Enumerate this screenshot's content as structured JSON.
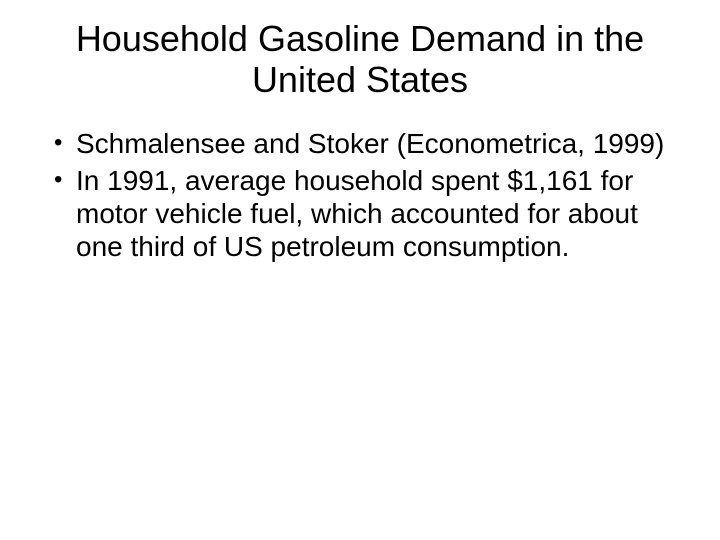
{
  "slide": {
    "title": "Household Gasoline Demand in the United States",
    "bullets": [
      "Schmalensee and Stoker (Econometrica, 1999)",
      "In 1991, average household spent $1,161 for motor vehicle fuel, which accounted for about one third of US petroleum consumption."
    ],
    "colors": {
      "background": "#ffffff",
      "text": "#000000"
    },
    "typography": {
      "title_fontsize": 36,
      "body_fontsize": 28,
      "font_family": "Arial"
    }
  }
}
